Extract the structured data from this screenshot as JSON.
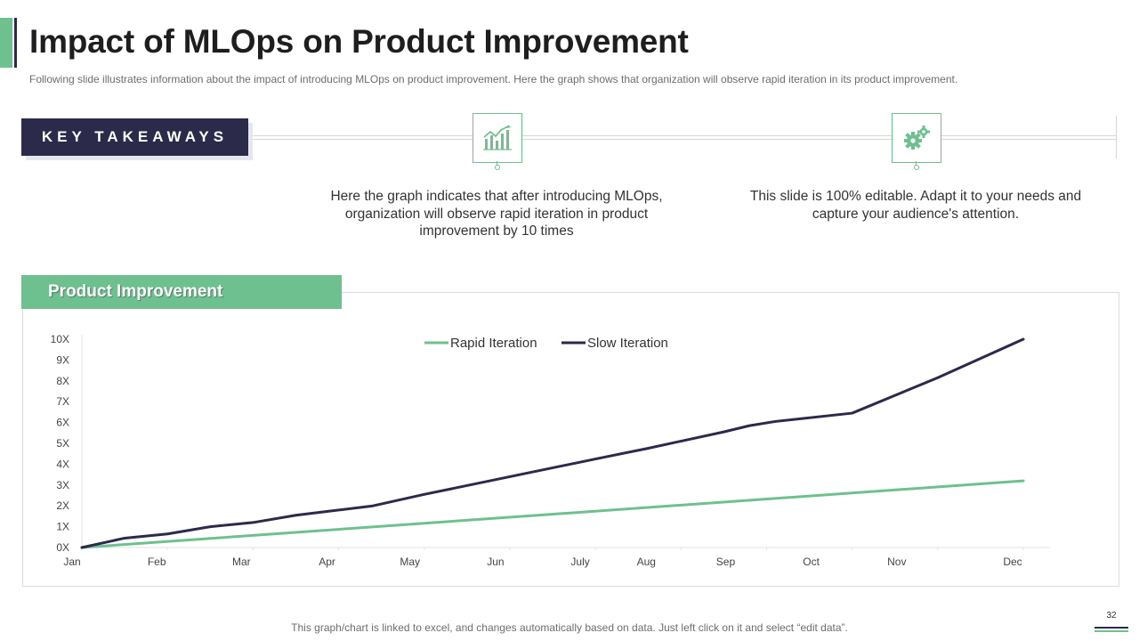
{
  "header": {
    "title": "Impact of MLOps on Product Improvement",
    "subtitle": "Following slide illustrates information about the impact of introducing MLOps on product improvement. Here the graph shows that organization will observe rapid iteration in its product improvement."
  },
  "key_takeaways": {
    "label": "KEY TAKEAWAYS",
    "items": [
      {
        "icon": "bar-chart-growth-icon",
        "text": "Here the graph indicates that after introducing MLOps, organization will observe rapid iteration in product improvement by 10 times"
      },
      {
        "icon": "gears-icon",
        "text": "This slide is 100% editable. Adapt it to your needs and capture your audience's attention."
      }
    ]
  },
  "chart_panel": {
    "header": "Product Improvement"
  },
  "chart_data": {
    "type": "line",
    "title": "Product Improvement",
    "categories": [
      "Jan",
      "Feb",
      "Mar",
      "Apr",
      "May",
      "Jun",
      "July",
      "Aug",
      "Sep",
      "Oct",
      "Nov",
      "Dec"
    ],
    "y_ticks": [
      "0X",
      "1X",
      "2X",
      "3X",
      "4X",
      "5X",
      "6X",
      "7X",
      "8X",
      "9X",
      "10X"
    ],
    "ylim": [
      0,
      10
    ],
    "legend_position": "top-center",
    "series": [
      {
        "name": "Rapid Iteration",
        "color": "#6fc08f",
        "x": [
          0,
          11
        ],
        "values": [
          0,
          3.2
        ]
      },
      {
        "name": "Slow Iteration",
        "color": "#2c2a4a",
        "x": [
          0,
          0.5,
          1,
          1.5,
          2,
          2.5,
          3,
          3.4,
          4,
          5,
          6,
          6.6,
          7.5,
          7.8,
          8.1,
          9,
          10,
          11
        ],
        "values": [
          0,
          0.45,
          0.65,
          1.0,
          1.2,
          1.55,
          1.8,
          2.0,
          2.55,
          3.4,
          4.25,
          4.75,
          5.55,
          5.85,
          6.05,
          6.45,
          8.15,
          10.0
        ]
      }
    ]
  },
  "footer": {
    "note": "This graph/chart is linked to excel, and changes automatically based on data. Just left click on it and select “edit data”.",
    "page_number": "32"
  }
}
